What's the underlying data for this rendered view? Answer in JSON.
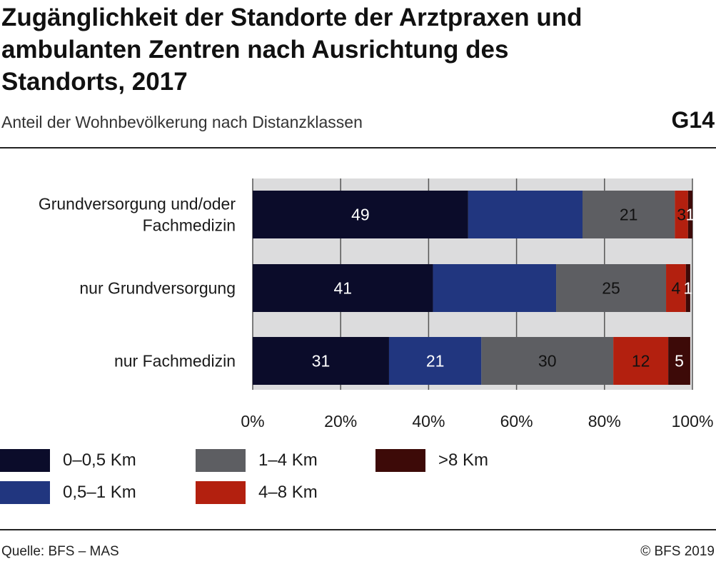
{
  "title": "Zugänglichkeit der Standorte der Arztpraxen und ambulanten Zentren nach Ausrichtung des Standorts, 2017",
  "subtitle": "Anteil der Wohnbevölkerung nach Distanzklassen",
  "figure_number": "G14",
  "footer": {
    "source": "Quelle: BFS – MAS",
    "copyright": "© BFS 2019"
  },
  "chart_data": {
    "type": "bar",
    "orientation": "horizontal",
    "stacked": true,
    "title": "Zugänglichkeit der Standorte der Arztpraxen und ambulanten Zentren nach Ausrichtung des Standorts, 2017",
    "subtitle": "Anteil der Wohnbevölkerung nach Distanzklassen",
    "categories": [
      "Grundversorgung und/oder Fachmedizin",
      "nur Grundversorgung",
      "nur Fachmedizin"
    ],
    "category_label_lines": [
      [
        "Grundversorgung und/oder",
        "Fachmedizin"
      ],
      [
        "nur Grundversorgung"
      ],
      [
        "nur Fachmedizin"
      ]
    ],
    "series": [
      {
        "name": "0–0,5 Km",
        "color": "#0b0c2a",
        "label_color": "#ffffff",
        "values": [
          49,
          41,
          31
        ],
        "labels": [
          "49",
          "41",
          "31"
        ]
      },
      {
        "name": "0,5–1 Km",
        "color": "#21367f",
        "label_color": "#ffffff",
        "values": [
          26,
          28,
          21
        ],
        "labels": [
          "",
          "",
          "21"
        ]
      },
      {
        "name": "1–4 Km",
        "color": "#5d5e62",
        "label_color": "#111111",
        "values": [
          21,
          25,
          30
        ],
        "labels": [
          "21",
          "25",
          "30"
        ]
      },
      {
        "name": "4–8 Km",
        "color": "#b3200f",
        "label_color": "#111111",
        "values": [
          3,
          4.5,
          12.5
        ],
        "labels": [
          "3",
          "4",
          "12"
        ]
      },
      {
        "name": ">8 Km",
        "color": "#3d0a08",
        "label_color": "#ffffff",
        "values": [
          1,
          1,
          5
        ],
        "labels": [
          "1",
          "1",
          "5"
        ]
      }
    ],
    "xlim": [
      0,
      100
    ],
    "xticks": [
      "0%",
      "20%",
      "40%",
      "60%",
      "80%",
      "100%"
    ],
    "grid": true,
    "legend_position": "bottom"
  }
}
